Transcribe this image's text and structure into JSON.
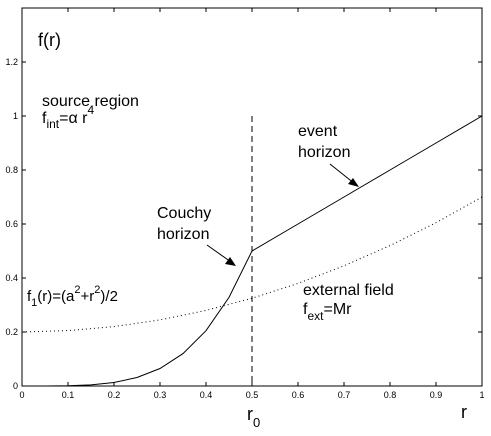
{
  "chart_data": {
    "type": "line",
    "title": "",
    "xlabel": "r",
    "ylabel": "f(r)",
    "xlim": [
      0,
      1
    ],
    "ylim": [
      0,
      1.4
    ],
    "x_ticks": [
      "0",
      "0.1",
      "0.2",
      "0.3",
      "0.4",
      "0.5",
      "0.6",
      "0.7",
      "0.8",
      "0.9",
      "1"
    ],
    "y_ticks": [
      "0",
      "0.2",
      "0.4",
      "0.6",
      "0.8",
      "1",
      "1.2"
    ],
    "grid": false,
    "series": [
      {
        "style": "solid",
        "points": [
          [
            0,
            0
          ],
          [
            0.05,
            0.0001
          ],
          [
            0.1,
            0.0008
          ],
          [
            0.15,
            0.0041
          ],
          [
            0.2,
            0.0128
          ],
          [
            0.25,
            0.0313
          ],
          [
            0.3,
            0.0648
          ],
          [
            0.35,
            0.12
          ],
          [
            0.4,
            0.2048
          ],
          [
            0.45,
            0.328
          ],
          [
            0.5,
            0.5
          ],
          [
            0.6,
            0.6
          ],
          [
            0.7,
            0.7
          ],
          [
            0.8,
            0.8
          ],
          [
            0.9,
            0.9
          ],
          [
            1.0,
            1.0
          ]
        ]
      },
      {
        "style": "dotted",
        "points": [
          [
            0,
            0.2
          ],
          [
            0.1,
            0.205
          ],
          [
            0.2,
            0.22
          ],
          [
            0.3,
            0.245
          ],
          [
            0.4,
            0.28
          ],
          [
            0.5,
            0.325
          ],
          [
            0.6,
            0.38
          ],
          [
            0.7,
            0.445
          ],
          [
            0.8,
            0.52
          ],
          [
            0.9,
            0.605
          ],
          [
            1.0,
            0.7
          ]
        ]
      }
    ],
    "vline": {
      "x": 0.5,
      "style": "dashed",
      "label_main": "r",
      "label_sub": "0"
    },
    "annotations": {
      "source_region": "source region",
      "f_int_main": "f",
      "f_int_sub": "int",
      "f_int_eq": "=α r",
      "f_int_sup": "4",
      "event_line1": "event",
      "event_line2": "horizon",
      "couchy_line1": "Couchy",
      "couchy_line2": "horizon",
      "f1_main": "f",
      "f1_sub": "1",
      "f1_a": "(r)=(a",
      "f1_sup1": "2",
      "f1_b": "+r",
      "f1_sup2": "2",
      "f1_c": ")/2",
      "external_field": "external field",
      "f_ext_main": "f",
      "f_ext_sub": "ext",
      "f_ext_eq": "=Mr"
    }
  }
}
